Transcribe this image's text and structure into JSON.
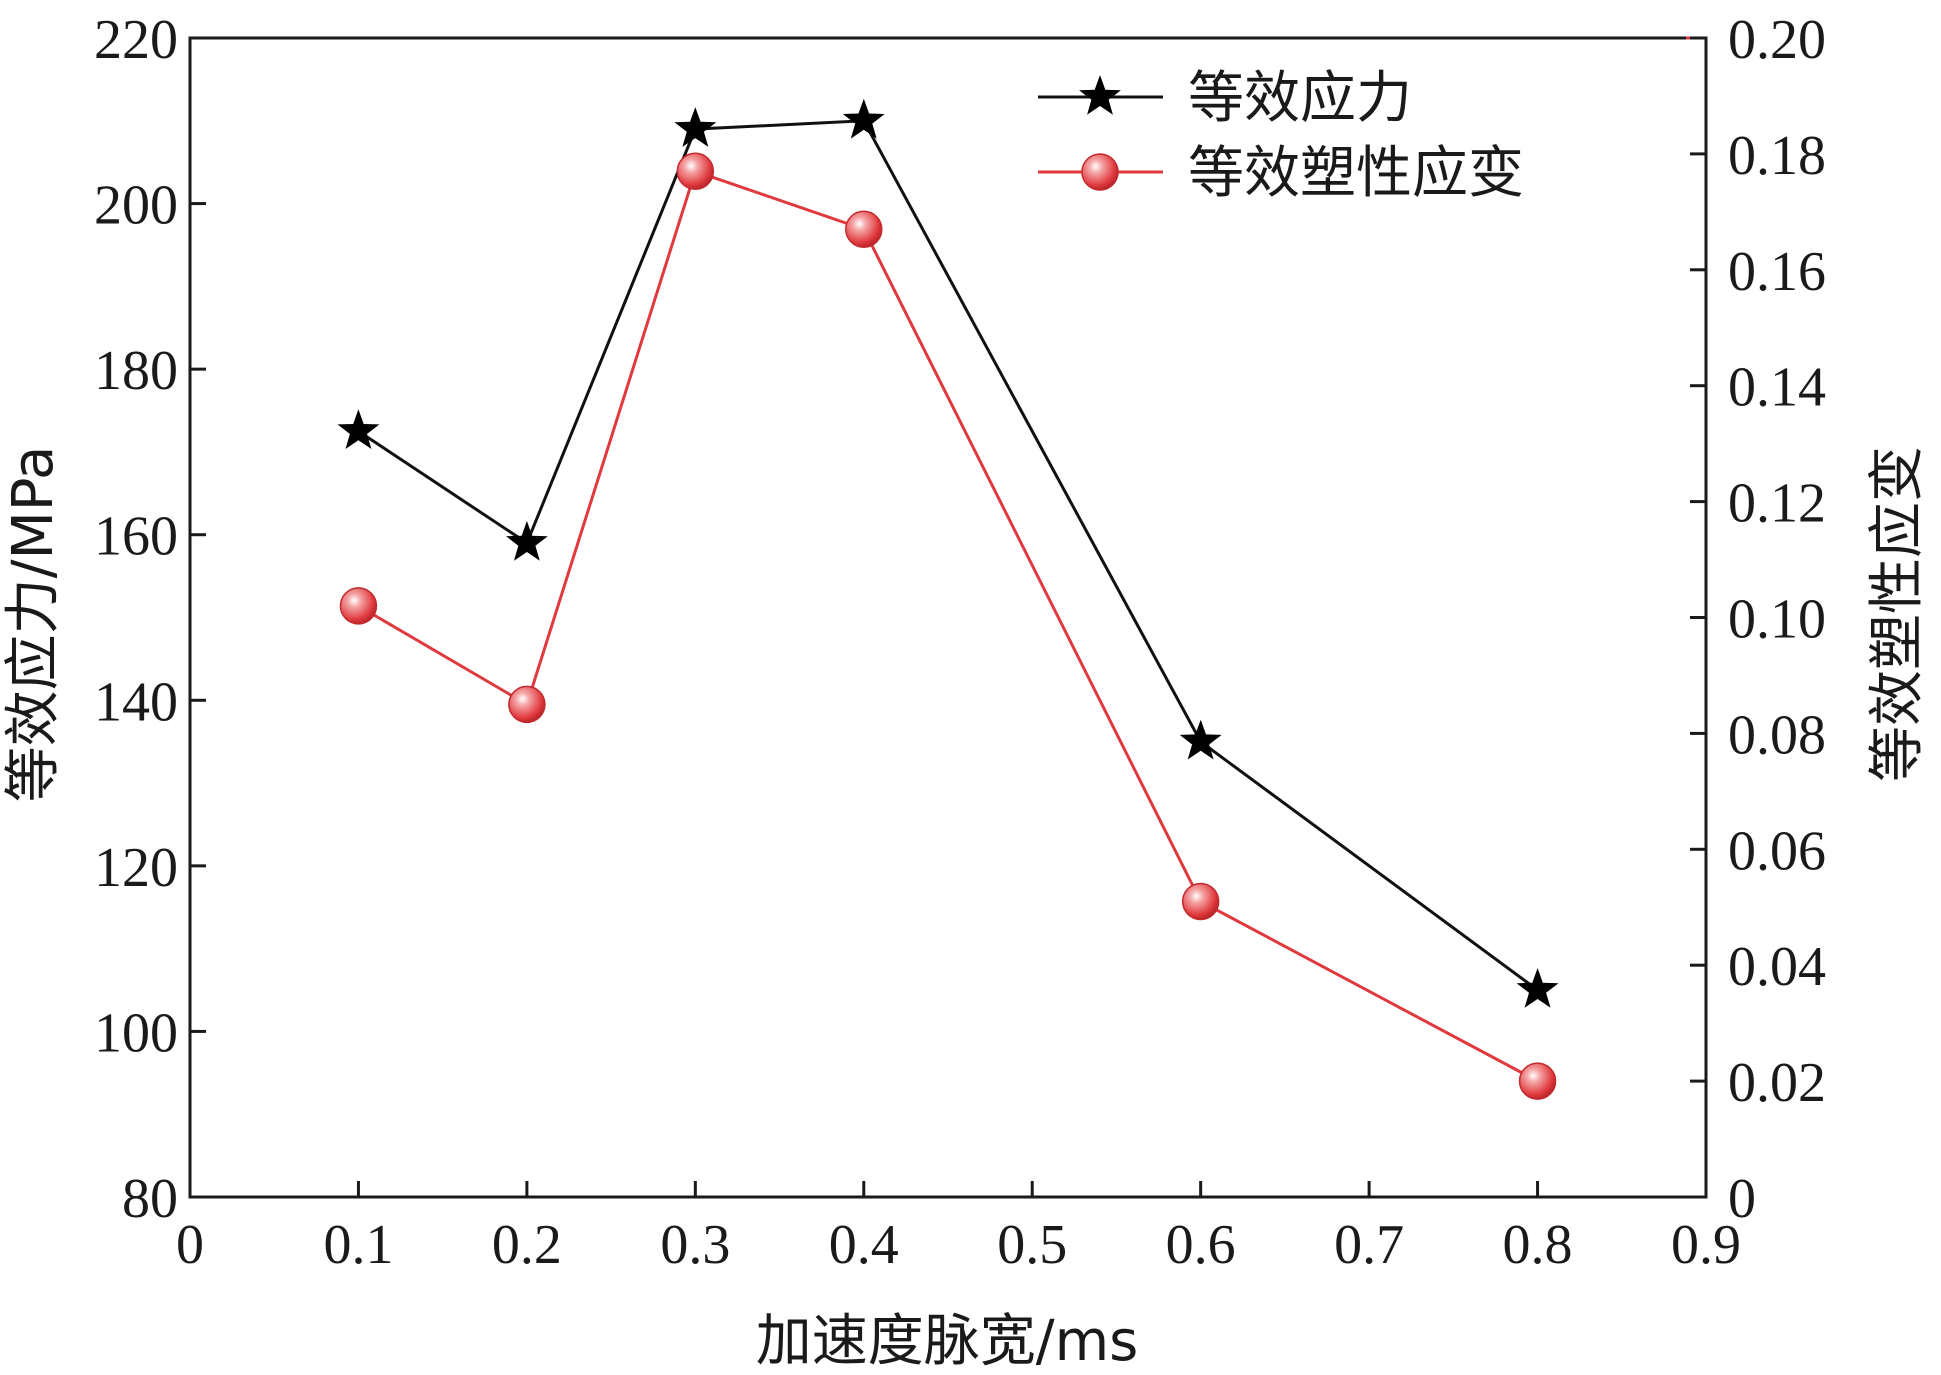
{
  "chart_data": {
    "type": "line",
    "xlabel": "加速度脉宽/ms",
    "ylabel_left": "等效应力/MPa",
    "ylabel_right": "等效塑性应变",
    "xlim": [
      0,
      0.9
    ],
    "ylim_left": [
      80,
      220
    ],
    "ylim_right": [
      0,
      0.2
    ],
    "x_ticks": [
      "0",
      "0.1",
      "0.2",
      "0.3",
      "0.4",
      "0.5",
      "0.6",
      "0.7",
      "0.8",
      "0.9"
    ],
    "y_left_ticks": [
      "80",
      "100",
      "120",
      "140",
      "160",
      "180",
      "200",
      "220"
    ],
    "y_right_ticks": [
      "0",
      "0.02",
      "0.04",
      "0.06",
      "0.08",
      "0.10",
      "0.12",
      "0.14",
      "0.16",
      "0.18",
      "0.20"
    ],
    "grid": false,
    "legend_position": "top-right",
    "series": [
      {
        "name": "等效应力",
        "axis": "left",
        "color": "#111111",
        "marker": "star",
        "x": [
          0.1,
          0.2,
          0.3,
          0.4,
          0.6,
          0.8
        ],
        "y": [
          172.5,
          159,
          209,
          210,
          135,
          105
        ]
      },
      {
        "name": "等效塑性应变",
        "axis": "right",
        "color": "#e03a3e",
        "marker": "circle",
        "x": [
          0.1,
          0.2,
          0.3,
          0.4,
          0.6,
          0.8
        ],
        "y": [
          0.102,
          0.085,
          0.177,
          0.167,
          0.051,
          0.02
        ]
      }
    ]
  }
}
